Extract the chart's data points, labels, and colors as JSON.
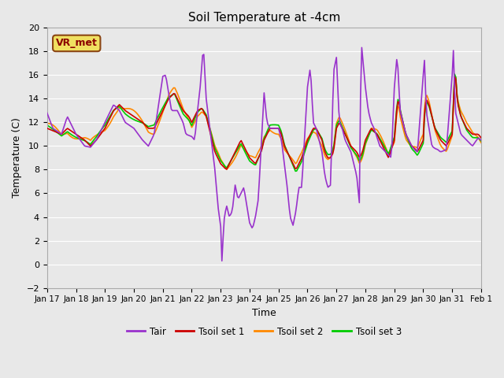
{
  "title": "Soil Temperature at -4cm",
  "xlabel": "Time",
  "ylabel": "Temperature (C)",
  "ylim": [
    -2,
    20
  ],
  "yticks": [
    -2,
    0,
    2,
    4,
    6,
    8,
    10,
    12,
    14,
    16,
    18,
    20
  ],
  "bg_color": "#e8e8e8",
  "plot_bg_color": "#e8e8e8",
  "grid_color": "white",
  "annotation_text": "VR_met",
  "annotation_bg": "#f0e060",
  "annotation_border": "#8B4513",
  "colors": {
    "Tair": "#9932CC",
    "Tsoil1": "#cc0000",
    "Tsoil2": "#ff8800",
    "Tsoil3": "#00cc00"
  },
  "legend_labels": [
    "Tair",
    "Tsoil set 1",
    "Tsoil set 2",
    "Tsoil set 3"
  ],
  "xtick_labels": [
    "Jan 17",
    "Jan 18",
    "Jan 19",
    "Jan 20",
    "Jan 21",
    "Jan 22",
    "Jan 23",
    "Jan 24",
    "Jan 25",
    "Jan 26",
    "Jan 27",
    "Jan 28",
    "Jan 29",
    "Jan 30",
    "Jan 31",
    "Feb 1"
  ],
  "n_points": 361
}
